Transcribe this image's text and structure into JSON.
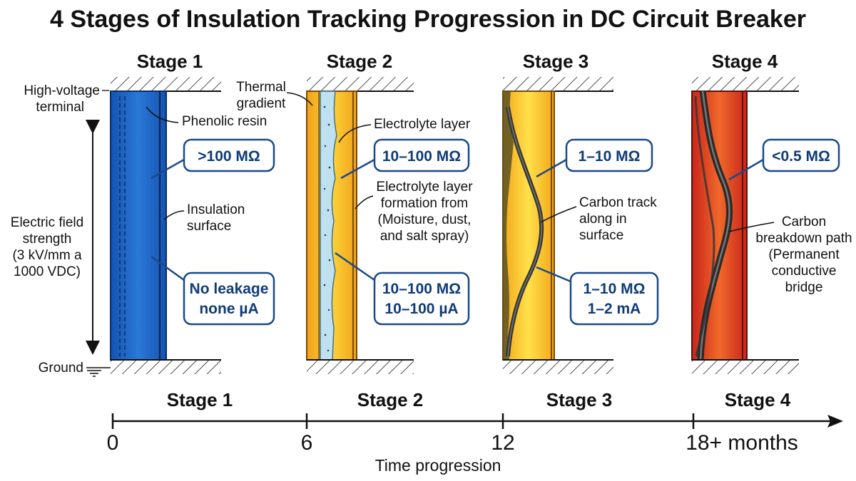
{
  "title": "4 Stages of Insulation Tracking Progression in DC Circuit Breaker",
  "stages": [
    {
      "top_label": "Stage 1",
      "bottom_label": "Stage 1",
      "callouts": [
        ">100 MΩ"
      ],
      "callouts2": [
        "No leakage",
        "none µA"
      ],
      "annotations": {
        "terminal": [
          "High-voltage",
          "terminal"
        ],
        "resin": "Phenolic resin",
        "surface": [
          "Insulation",
          "surface"
        ],
        "field": [
          "Electric field",
          "strength",
          "(3 kV/mm a",
          "1000 VDC)"
        ],
        "ground": "Ground"
      }
    },
    {
      "top_label": "Stage 2",
      "bottom_label": "Stage 2",
      "callouts": [
        "10–100 MΩ"
      ],
      "callouts2": [
        "10–100 MΩ",
        "10–100 µA"
      ],
      "annotations": {
        "thermal": [
          "Thermal",
          "gradient"
        ],
        "electrolyte": "Electrolyte layer",
        "formation": [
          "Electrolyte layer",
          "formation from",
          "(Moisture, dust,",
          "and salt spray)"
        ]
      }
    },
    {
      "top_label": "Stage 3",
      "bottom_label": "Stage 3",
      "callouts": [
        "1–10 MΩ"
      ],
      "callouts2": [
        "1–10 MΩ",
        "1–2 mA"
      ],
      "annotations": {
        "carbon": [
          "Carbon track",
          "along in",
          "surface"
        ]
      }
    },
    {
      "top_label": "Stage 4",
      "bottom_label": "Stage 4",
      "callouts": [
        "<0.5 MΩ"
      ],
      "annotations": {
        "breakdown": [
          "Carbon",
          "breakdown path",
          "(Permanent",
          "conductive",
          "bridge"
        ]
      }
    }
  ],
  "timeline": {
    "ticks": [
      "0",
      "6",
      "12",
      "18+ months"
    ],
    "axis_title": "Time progression"
  },
  "colors": {
    "stage1": "#1e63c4",
    "stage2": "#f6b81a",
    "stage3": "#f8c21c",
    "stage4": "#d9321e",
    "callout_border": "#1b4a8a",
    "callout_text": "#0f3b78"
  }
}
